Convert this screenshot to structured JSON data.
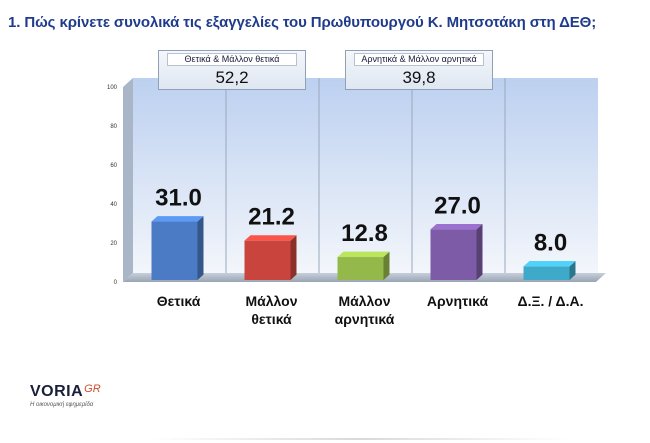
{
  "title": "1. Πώς κρίνετε συνολικά τις εξαγγελίες του Πρωθυπουργού Κ. Μητσοτάκη στη ΔΕΘ;",
  "summaries": [
    {
      "label": "Θετικά & Μάλλον θετικά",
      "value": "52,2"
    },
    {
      "label": "Αρνητικά & Μάλλον αρνητικά",
      "value": "39,8"
    }
  ],
  "logo": {
    "name": "VORIA",
    "suffix": "GR",
    "tagline": "Η οικονομική εφημερίδα"
  },
  "chart_data": {
    "type": "bar",
    "title": "",
    "xlabel": "",
    "ylabel": "",
    "categories": [
      [
        "Θετικά"
      ],
      [
        "Μάλλον",
        "θετικά"
      ],
      [
        "Μάλλον",
        "αρνητικά"
      ],
      [
        "Αρνητικά"
      ],
      [
        "Δ.Ξ. / Δ.Α."
      ]
    ],
    "values": [
      31.0,
      21.2,
      12.8,
      27.0,
      8.0
    ],
    "value_labels": [
      "31.0",
      "21.2",
      "12.8",
      "27.0",
      "8.0"
    ],
    "colors": [
      "#4a7bc4",
      "#c8443c",
      "#94b84a",
      "#7d5ba6",
      "#3fa9c9"
    ],
    "ylim": [
      0,
      100
    ],
    "yticks": [
      "0",
      "20",
      "40",
      "60",
      "80",
      "100"
    ],
    "grid": true,
    "legend": "none"
  }
}
